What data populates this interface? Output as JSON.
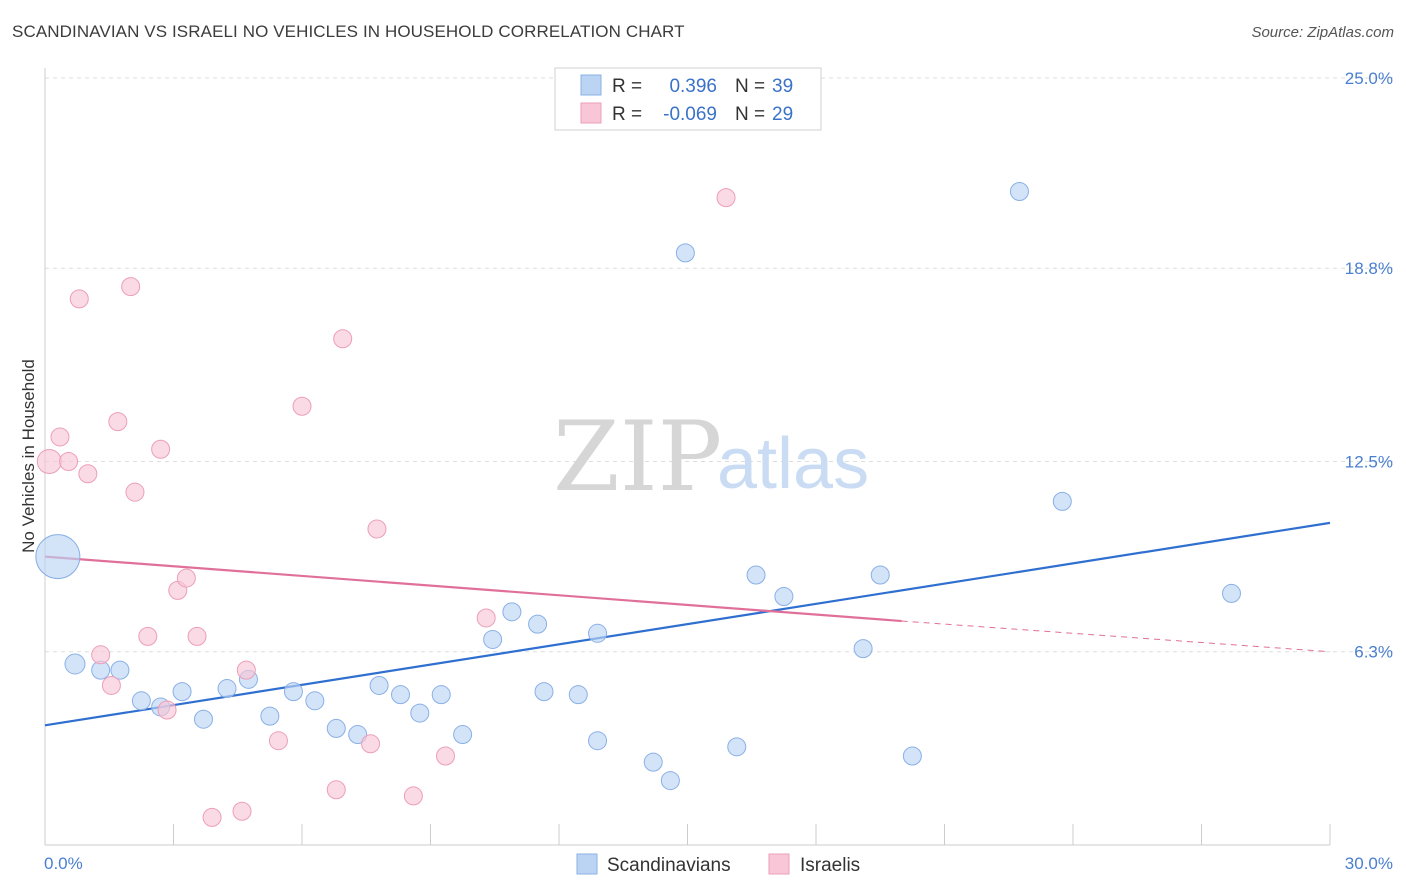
{
  "title": "SCANDINAVIAN VS ISRAELI NO VEHICLES IN HOUSEHOLD CORRELATION CHART",
  "source": "Source: ZipAtlas.com",
  "watermark": {
    "zip": "ZIP",
    "atlas": "atlas"
  },
  "colors": {
    "scandinavian_fill": "#bcd4f4",
    "scandinavian_stroke": "#8ab0e6",
    "scandinavian_line": "#2f6fd0",
    "israeli_fill": "#f8c6d6",
    "israeli_stroke": "#ec9fb8",
    "israeli_line": "#e0709a",
    "tick": "#4a7fd0"
  },
  "legend": {
    "r_label": "R =",
    "n_label": "N =",
    "rows": [
      {
        "r": "0.396",
        "n": "39"
      },
      {
        "r": "-0.069",
        "n": "29"
      }
    ]
  },
  "chart_data": {
    "type": "scatter",
    "title": "SCANDINAVIAN VS ISRAELI NO VEHICLES IN HOUSEHOLD CORRELATION CHART",
    "xlabel": "",
    "ylabel": "No Vehicles in Household",
    "xlim": [
      0,
      30
    ],
    "ylim": [
      0,
      25
    ],
    "x_tick_labels": [
      "0.0%",
      "30.0%"
    ],
    "y_ticks": [
      6.3,
      12.5,
      18.8,
      25.0
    ],
    "y_tick_labels": [
      "6.3%",
      "12.5%",
      "18.8%",
      "25.0%"
    ],
    "grid": true,
    "legend_position": "top-center",
    "series": [
      {
        "name": "Scandinavians",
        "points": [
          [
            0.3,
            9.4,
            22
          ],
          [
            0.7,
            5.9,
            10
          ],
          [
            1.3,
            5.7,
            9
          ],
          [
            1.75,
            5.7,
            9
          ],
          [
            2.25,
            4.7,
            9
          ],
          [
            2.7,
            4.5,
            9
          ],
          [
            3.2,
            5.0,
            9
          ],
          [
            3.7,
            4.1,
            9
          ],
          [
            4.25,
            5.1,
            9
          ],
          [
            4.75,
            5.4,
            9
          ],
          [
            5.25,
            4.2,
            9
          ],
          [
            5.8,
            5.0,
            9
          ],
          [
            6.3,
            4.7,
            9
          ],
          [
            6.8,
            3.8,
            9
          ],
          [
            7.3,
            3.6,
            9
          ],
          [
            7.8,
            5.2,
            9
          ],
          [
            8.3,
            4.9,
            9
          ],
          [
            8.75,
            4.3,
            9
          ],
          [
            9.25,
            4.9,
            9
          ],
          [
            9.75,
            3.6,
            9
          ],
          [
            10.45,
            6.7,
            9
          ],
          [
            10.9,
            7.6,
            9
          ],
          [
            11.5,
            7.2,
            9
          ],
          [
            11.65,
            5.0,
            9
          ],
          [
            12.45,
            4.9,
            9
          ],
          [
            12.9,
            3.4,
            9
          ],
          [
            12.9,
            6.9,
            9
          ],
          [
            14.2,
            2.7,
            9
          ],
          [
            14.6,
            2.1,
            9
          ],
          [
            14.95,
            19.3,
            9
          ],
          [
            16.15,
            3.2,
            9
          ],
          [
            16.6,
            8.8,
            9
          ],
          [
            17.25,
            8.1,
            9
          ],
          [
            19.1,
            6.4,
            9
          ],
          [
            19.5,
            8.8,
            9
          ],
          [
            20.25,
            2.9,
            9
          ],
          [
            22.75,
            21.3,
            9
          ],
          [
            23.75,
            11.2,
            9
          ],
          [
            27.7,
            8.2,
            9
          ]
        ]
      },
      {
        "name": "Israelis",
        "points": [
          [
            0.1,
            12.5,
            12
          ],
          [
            0.35,
            13.3,
            9
          ],
          [
            0.55,
            12.5,
            9
          ],
          [
            0.8,
            17.8,
            9
          ],
          [
            1.0,
            12.1,
            9
          ],
          [
            1.3,
            6.2,
            9
          ],
          [
            1.55,
            5.2,
            9
          ],
          [
            1.7,
            13.8,
            9
          ],
          [
            2.0,
            18.2,
            9
          ],
          [
            2.1,
            11.5,
            9
          ],
          [
            2.4,
            6.8,
            9
          ],
          [
            2.7,
            12.9,
            9
          ],
          [
            2.85,
            4.4,
            9
          ],
          [
            3.1,
            8.3,
            9
          ],
          [
            3.3,
            8.7,
            9
          ],
          [
            3.55,
            6.8,
            9
          ],
          [
            3.9,
            0.9,
            9
          ],
          [
            4.6,
            1.1,
            9
          ],
          [
            4.7,
            5.7,
            9
          ],
          [
            5.45,
            3.4,
            9
          ],
          [
            6.0,
            14.3,
            9
          ],
          [
            6.8,
            1.8,
            9
          ],
          [
            6.95,
            16.5,
            9
          ],
          [
            7.6,
            3.3,
            9
          ],
          [
            7.75,
            10.3,
            9
          ],
          [
            8.6,
            1.6,
            9
          ],
          [
            9.35,
            2.9,
            9
          ],
          [
            10.3,
            7.4,
            9
          ],
          [
            15.9,
            21.1,
            9
          ]
        ]
      }
    ],
    "trend_lines": [
      {
        "series": "Scandinavians",
        "x1": 0.0,
        "y1": 3.9,
        "x2": 30.0,
        "y2": 10.5,
        "dashed_from_x": null
      },
      {
        "series": "Israelis",
        "x1": 0.0,
        "y1": 9.4,
        "x2": 20.0,
        "y2": 7.3,
        "dashed_from_x": 20.0,
        "dashed_to_x": 30.0,
        "dashed_to_y": 6.3
      }
    ]
  }
}
